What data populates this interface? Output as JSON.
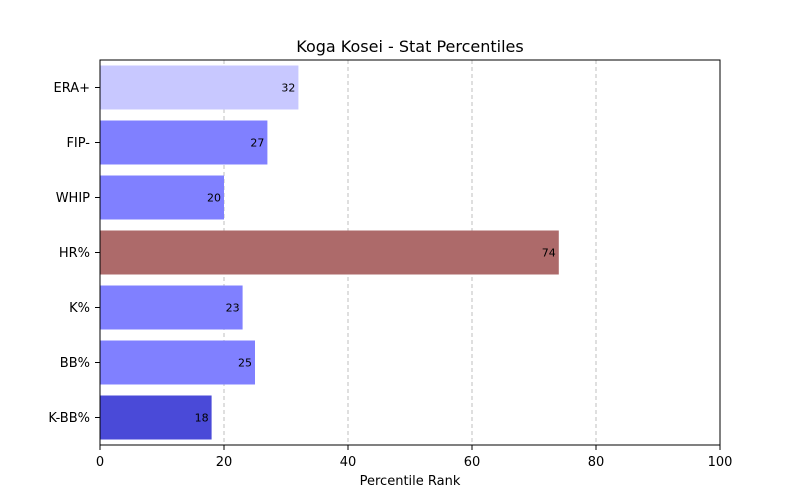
{
  "chart_data": {
    "type": "bar",
    "orientation": "horizontal",
    "title": "Koga Kosei - Stat Percentiles",
    "xlabel": "Percentile Rank",
    "ylabel": "",
    "xlim": [
      0,
      100
    ],
    "xticks": [
      0,
      20,
      40,
      60,
      80,
      100
    ],
    "grid": "x-dashed",
    "categories": [
      "ERA+",
      "FIP-",
      "WHIP",
      "HR%",
      "K%",
      "BB%",
      "K-BB%"
    ],
    "values": [
      32,
      27,
      20,
      74,
      23,
      25,
      18
    ],
    "colors": [
      "#c8c8ff",
      "#8080ff",
      "#8080ff",
      "#ad6a6a",
      "#8080ff",
      "#8080ff",
      "#4a4ad8"
    ]
  }
}
